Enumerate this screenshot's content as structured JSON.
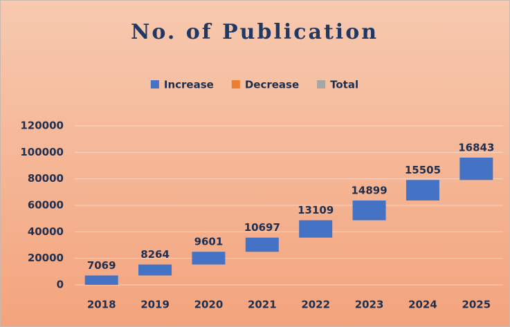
{
  "chart_data": {
    "type": "waterfall",
    "title": "No. of Publication",
    "categories": [
      "2018",
      "2019",
      "2020",
      "2021",
      "2022",
      "2023",
      "2024",
      "2025"
    ],
    "values": [
      7069,
      8264,
      9601,
      10697,
      13109,
      14899,
      15505,
      16843
    ],
    "legend": [
      {
        "name": "Increase",
        "color": "#4472c4"
      },
      {
        "name": "Decrease",
        "color": "#ed7d31"
      },
      {
        "name": "Total",
        "color": "#a5a5a5"
      }
    ],
    "ylim": [
      0,
      120000
    ],
    "yticks": [
      0,
      20000,
      40000,
      60000,
      80000,
      100000,
      120000
    ],
    "grid": true
  }
}
